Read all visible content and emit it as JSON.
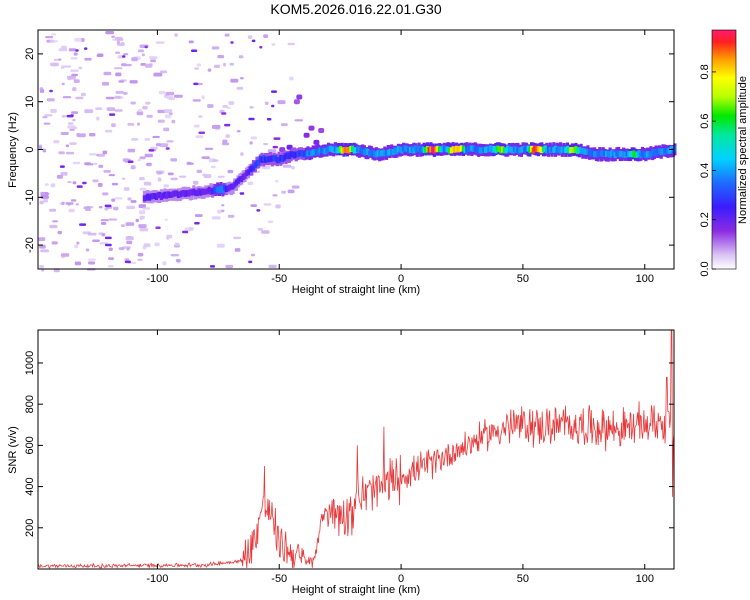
{
  "title": "KOM5.2026.016.22.01.G30",
  "chart_data": [
    {
      "type": "heatmap",
      "name": "spectrogram",
      "xlabel": "Height of straight line (km)",
      "ylabel": "Frequency (Hz)",
      "xlim": [
        -149,
        112
      ],
      "ylim": [
        -25,
        25
      ],
      "xticks": [
        -100,
        -50,
        0,
        50,
        100
      ],
      "yticks": [
        -20,
        -10,
        0,
        10,
        20
      ],
      "colorbar": {
        "label": "Normalized spectral amplitude",
        "range": [
          0,
          0.97
        ],
        "ticks": [
          0.0,
          0.2,
          0.4,
          0.6,
          0.8
        ]
      },
      "ridge": {
        "description": "dominant frequency track",
        "points": [
          [
            -105,
            -10
          ],
          [
            -85,
            -9
          ],
          [
            -70,
            -8
          ],
          [
            -62,
            -4
          ],
          [
            -58,
            -2
          ],
          [
            -50,
            -2
          ],
          [
            -45,
            -1
          ],
          [
            -40,
            -1
          ],
          [
            -30,
            0
          ],
          [
            -20,
            0
          ],
          [
            -10,
            -1
          ],
          [
            0,
            0
          ],
          [
            10,
            0
          ],
          [
            20,
            0
          ],
          [
            30,
            0
          ],
          [
            40,
            0
          ],
          [
            50,
            0
          ],
          [
            60,
            0
          ],
          [
            70,
            0
          ],
          [
            80,
            -1
          ],
          [
            90,
            -1
          ],
          [
            100,
            -1
          ],
          [
            112,
            0
          ]
        ]
      },
      "hotspots": [
        {
          "x": 12,
          "f": 0,
          "amp": 0.95
        },
        {
          "x": 22,
          "f": 0,
          "amp": 0.95
        },
        {
          "x": 55,
          "f": 0,
          "amp": 0.95
        },
        {
          "x": -23,
          "f": 0,
          "amp": 0.9
        },
        {
          "x": 40,
          "f": 0,
          "amp": 0.7
        },
        {
          "x": 70,
          "f": 0,
          "amp": 0.7
        },
        {
          "x": 95,
          "f": -1,
          "amp": 0.6
        },
        {
          "x": -75,
          "f": -8,
          "amp": 0.4
        }
      ]
    },
    {
      "type": "line",
      "name": "snr",
      "xlabel": "Height of straight line (km)",
      "ylabel": "SNR (v/v)",
      "xlim": [
        -149,
        112
      ],
      "ylim": [
        0,
        1160
      ],
      "xticks": [
        -100,
        -50,
        0,
        50,
        100
      ],
      "yticks": [
        200,
        400,
        600,
        800,
        1000
      ],
      "color": "#e8393a",
      "envelope": {
        "x": [
          -149,
          -120,
          -100,
          -80,
          -65,
          -60,
          -57,
          -54,
          -50,
          -45,
          -40,
          -36,
          -33,
          -30,
          -25,
          -20,
          -15,
          -10,
          -5,
          0,
          10,
          20,
          30,
          40,
          50,
          60,
          70,
          80,
          90,
          100,
          105,
          108,
          110,
          112
        ],
        "y": [
          15,
          15,
          18,
          20,
          40,
          150,
          300,
          280,
          130,
          80,
          40,
          30,
          220,
          300,
          260,
          300,
          360,
          380,
          420,
          450,
          500,
          560,
          620,
          680,
          700,
          690,
          700,
          690,
          680,
          700,
          720,
          700,
          720,
          640
        ]
      },
      "noise": [
        {
          "x": [
            -149,
            -65
          ],
          "amp": 12
        },
        {
          "x": [
            -65,
            -40
          ],
          "amp": 120
        },
        {
          "x": [
            -40,
            -30
          ],
          "amp": 40
        },
        {
          "x": [
            -30,
            0
          ],
          "amp": 140
        },
        {
          "x": [
            0,
            40
          ],
          "amp": 90
        },
        {
          "x": [
            40,
            112
          ],
          "amp": 120
        }
      ],
      "spikes": [
        {
          "x": -56,
          "y": 500
        },
        {
          "x": -7,
          "y": 690
        },
        {
          "x": -18,
          "y": 600
        },
        {
          "x": 109,
          "y": 930
        },
        {
          "x": 111,
          "y": 1160
        },
        {
          "x": 111.5,
          "y": 350
        }
      ]
    }
  ]
}
